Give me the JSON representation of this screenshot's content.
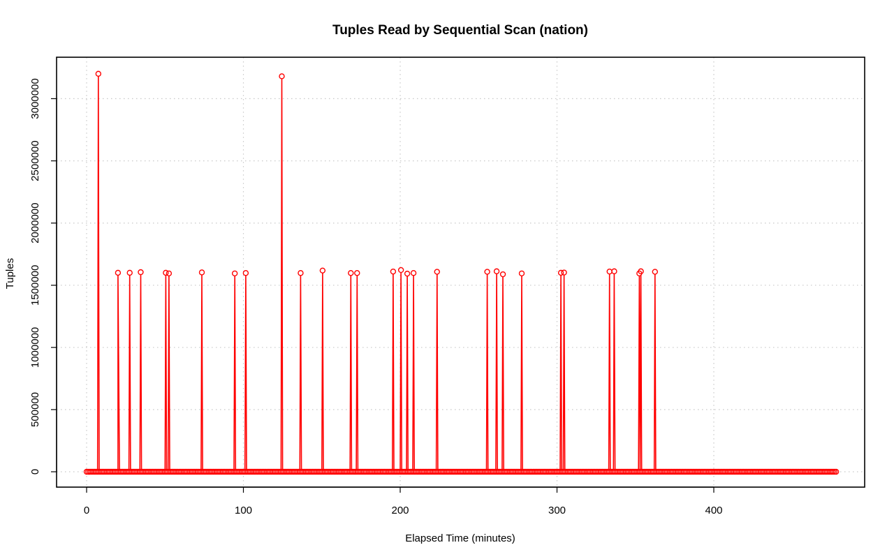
{
  "chart_data": {
    "type": "line",
    "title": "Tuples Read by Sequential Scan (nation)",
    "xlabel": "Elapsed Time (minutes)",
    "ylabel": "Tuples",
    "xlim": [
      0,
      480
    ],
    "ylim": [
      0,
      3200000
    ],
    "x_ticks": [
      0,
      100,
      200,
      300,
      400
    ],
    "y_ticks": [
      0,
      500000,
      1000000,
      1500000,
      2000000,
      2500000,
      3000000
    ],
    "x_tick_labels": [
      "0",
      "100",
      "200",
      "300",
      "400"
    ],
    "y_tick_labels": [
      "0",
      "500000",
      "1000000",
      "1500000",
      "2000000",
      "2500000",
      "3000000"
    ],
    "grid": true,
    "series_color": "#ff0000",
    "marker": "open-circle",
    "x_range": [
      0,
      478
    ],
    "x_step": 1,
    "baseline_value": 0,
    "peaks": [
      {
        "x": 7.5,
        "y": 3200000
      },
      {
        "x": 20,
        "y": 1600000
      },
      {
        "x": 27.5,
        "y": 1600000
      },
      {
        "x": 34.5,
        "y": 1605000
      },
      {
        "x": 50.5,
        "y": 1600000
      },
      {
        "x": 52.5,
        "y": 1595000
      },
      {
        "x": 73.5,
        "y": 1603000
      },
      {
        "x": 94.5,
        "y": 1595000
      },
      {
        "x": 101.5,
        "y": 1598000
      },
      {
        "x": 124.5,
        "y": 3180000
      },
      {
        "x": 136.5,
        "y": 1598000
      },
      {
        "x": 150.5,
        "y": 1618000
      },
      {
        "x": 168.5,
        "y": 1598000
      },
      {
        "x": 172.5,
        "y": 1598000
      },
      {
        "x": 195.5,
        "y": 1610000
      },
      {
        "x": 200.5,
        "y": 1622000
      },
      {
        "x": 204.5,
        "y": 1593000
      },
      {
        "x": 208.5,
        "y": 1598000
      },
      {
        "x": 223.5,
        "y": 1608000
      },
      {
        "x": 255.5,
        "y": 1608000
      },
      {
        "x": 261.5,
        "y": 1612000
      },
      {
        "x": 265.5,
        "y": 1588000
      },
      {
        "x": 277.5,
        "y": 1595000
      },
      {
        "x": 302.5,
        "y": 1600000
      },
      {
        "x": 304.5,
        "y": 1602000
      },
      {
        "x": 333.5,
        "y": 1610000
      },
      {
        "x": 336.5,
        "y": 1612000
      },
      {
        "x": 352.5,
        "y": 1595000
      },
      {
        "x": 353.5,
        "y": 1612000
      },
      {
        "x": 362.5,
        "y": 1608000
      }
    ]
  }
}
